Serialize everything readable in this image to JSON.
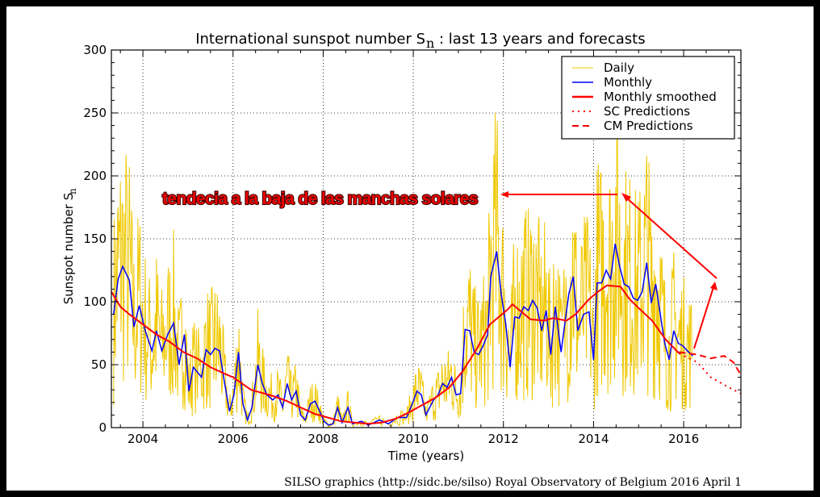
{
  "chart_data": {
    "type": "line",
    "title": "International sunspot number S",
    "title_subscript": "n",
    "title_suffix": ": last 13 years and forecasts",
    "xlabel": "Time (years)",
    "ylabel": "Sunspot number S",
    "ylabel_subscript": "n",
    "xlim": [
      2003.3,
      2017.27
    ],
    "ylim": [
      0,
      300
    ],
    "xticks": [
      2004,
      2006,
      2008,
      2010,
      2012,
      2014,
      2016
    ],
    "yticks": [
      0,
      50,
      100,
      150,
      200,
      250,
      300
    ],
    "grid": true,
    "legend_position": "top-right",
    "legend": [
      "Daily",
      "Monthly",
      "Monthly smoothed",
      "SC Predictions",
      "CM Predictions"
    ],
    "colors": {
      "daily": "#f0c800",
      "monthly": "#0000ff",
      "smoothed": "#ff0000",
      "predictions": "#ff0000"
    },
    "series": {
      "monthly": {
        "x": [
          2003.35,
          2003.45,
          2003.55,
          2003.7,
          2003.8,
          2003.92,
          2004.05,
          2004.2,
          2004.3,
          2004.42,
          2004.55,
          2004.68,
          2004.8,
          2004.92,
          2005.02,
          2005.12,
          2005.3,
          2005.4,
          2005.5,
          2005.6,
          2005.7,
          2005.8,
          2005.92,
          2006.02,
          2006.12,
          2006.22,
          2006.32,
          2006.42,
          2006.55,
          2006.65,
          2006.75,
          2006.88,
          2007.0,
          2007.1,
          2007.2,
          2007.3,
          2007.4,
          2007.5,
          2007.6,
          2007.72,
          2007.82,
          2007.92,
          2008.02,
          2008.12,
          2008.22,
          2008.32,
          2008.42,
          2008.55,
          2008.65,
          2008.85,
          2009.0,
          2009.25,
          2009.45,
          2009.65,
          2009.85,
          2009.98,
          2010.08,
          2010.18,
          2010.28,
          2010.45,
          2010.55,
          2010.65,
          2010.75,
          2010.85,
          2010.95,
          2011.05,
          2011.15,
          2011.25,
          2011.35,
          2011.45,
          2011.55,
          2011.65,
          2011.72,
          2011.85,
          2011.95,
          2012.05,
          2012.15,
          2012.25,
          2012.35,
          2012.45,
          2012.55,
          2012.65,
          2012.75,
          2012.85,
          2012.95,
          2013.05,
          2013.15,
          2013.28,
          2013.45,
          2013.55,
          2013.65,
          2013.78,
          2013.9,
          2014.0,
          2014.08,
          2014.18,
          2014.28,
          2014.38,
          2014.48,
          2014.58,
          2014.68,
          2014.78,
          2014.88,
          2014.98,
          2015.08,
          2015.18,
          2015.28,
          2015.38,
          2015.48,
          2015.58,
          2015.68,
          2015.78,
          2015.88,
          2015.98,
          2016.08,
          2016.2
        ],
        "y": [
          90,
          118,
          128,
          117,
          80,
          97,
          77,
          61,
          77,
          61,
          74,
          83,
          50,
          74,
          29,
          48,
          40,
          62,
          58,
          63,
          61,
          38,
          13,
          26,
          60,
          19,
          6,
          16,
          50,
          35,
          26,
          22,
          26,
          16,
          35,
          22,
          29,
          10,
          6,
          19,
          21,
          13,
          5,
          2,
          3,
          16,
          4,
          16,
          3,
          5,
          2,
          6,
          3,
          8,
          8,
          19,
          29,
          26,
          10,
          22,
          26,
          35,
          32,
          40,
          26,
          27,
          78,
          77,
          60,
          58,
          65,
          74,
          120,
          140,
          106,
          83,
          48,
          88,
          87,
          96,
          93,
          101,
          95,
          77,
          93,
          58,
          96,
          60,
          106,
          120,
          77,
          90,
          92,
          54,
          115,
          115,
          125,
          118,
          146,
          128,
          114,
          112,
          103,
          101,
          108,
          131,
          99,
          114,
          90,
          67,
          54,
          77,
          67,
          65,
          61,
          57
        ]
      },
      "smoothed": {
        "x": [
          2003.3,
          2003.5,
          2003.7,
          2004.0,
          2004.3,
          2004.6,
          2004.9,
          2005.2,
          2005.5,
          2005.8,
          2006.0,
          2006.2,
          2006.4,
          2006.6,
          2006.9,
          2007.2,
          2007.5,
          2007.8,
          2008.1,
          2008.4,
          2008.7,
          2009.0,
          2009.3,
          2009.6,
          2009.9,
          2010.2,
          2010.5,
          2010.8,
          2011.1,
          2011.4,
          2011.7,
          2011.9,
          2012.1,
          2012.2,
          2012.4,
          2012.6,
          2012.9,
          2013.1,
          2013.4,
          2013.6,
          2013.9,
          2014.1,
          2014.3,
          2014.6,
          2014.8,
          2015.0,
          2015.3,
          2015.6,
          2015.9
        ],
        "y": [
          108,
          96,
          90,
          82,
          74,
          68,
          60,
          55,
          48,
          43,
          40,
          35,
          30,
          28,
          25,
          21,
          16,
          11,
          8,
          5,
          4,
          3,
          4,
          7,
          12,
          18,
          24,
          32,
          45,
          62,
          82,
          88,
          94,
          98,
          92,
          86,
          85,
          87,
          85,
          90,
          102,
          108,
          113,
          112,
          102,
          95,
          85,
          70,
          59
        ]
      },
      "sc_predictions": {
        "x": [
          2015.9,
          2016.3,
          2016.6,
          2017.0,
          2017.27
        ],
        "y": [
          59,
          52,
          40,
          32,
          27
        ]
      },
      "cm_predictions": {
        "x": [
          2015.9,
          2016.3,
          2016.6,
          2016.9,
          2017.1,
          2017.27
        ],
        "y": [
          60,
          58,
          55,
          57,
          52,
          42
        ]
      }
    },
    "annotation": "tendecia a la baja de las manchas solares",
    "credit": "SILSO graphics (http://sidc.be/silso)  Royal Observatory of Belgium  2016 April 1"
  }
}
